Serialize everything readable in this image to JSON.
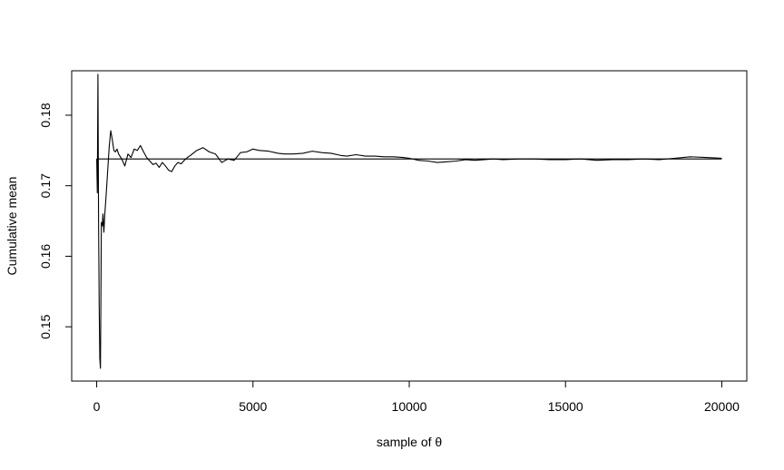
{
  "chart_data": {
    "type": "line",
    "title": "",
    "xlabel": "sample of θ",
    "ylabel": "Cumulative mean",
    "xlim": [
      -800,
      20800
    ],
    "ylim": [
      0.1423,
      0.1863
    ],
    "x_ticks": [
      0,
      5000,
      10000,
      15000,
      20000
    ],
    "x_tick_labels": [
      "0",
      "5000",
      "10000",
      "15000",
      "20000"
    ],
    "y_ticks": [
      0.15,
      0.16,
      0.17,
      0.18
    ],
    "y_tick_labels": [
      "0.15",
      "0.16",
      "0.17",
      "0.18"
    ],
    "grid": false,
    "legend": "none",
    "series": [
      {
        "style": "line",
        "x": [
          1,
          20,
          40,
          60,
          80,
          100,
          120,
          150,
          180,
          200,
          230,
          260,
          300,
          350,
          400,
          450,
          500,
          550,
          600,
          650,
          700,
          800,
          900,
          1000,
          1100,
          1200,
          1300,
          1400,
          1500,
          1600,
          1700,
          1800,
          1900,
          2000,
          2100,
          2200,
          2300,
          2400,
          2500,
          2600,
          2700,
          2800,
          2900,
          3000,
          3200,
          3400,
          3600,
          3800,
          4000,
          4200,
          4400,
          4600,
          4800,
          5000,
          5200,
          5500,
          5800,
          6000,
          6300,
          6600,
          6900,
          7200,
          7500,
          7800,
          8000,
          8300,
          8600,
          8900,
          9200,
          9500,
          9800,
          10000,
          10300,
          10600,
          10900,
          11200,
          11500,
          11800,
          12100,
          12400,
          12700,
          13000,
          13500,
          14000,
          14500,
          15000,
          15500,
          16000,
          16500,
          17000,
          17500,
          18000,
          18500,
          19000,
          19500,
          20000
        ],
        "y": [
          0.1738,
          0.169,
          0.1858,
          0.165,
          0.153,
          0.1455,
          0.1441,
          0.1648,
          0.1643,
          0.166,
          0.1634,
          0.166,
          0.1685,
          0.172,
          0.1755,
          0.1778,
          0.1765,
          0.175,
          0.1748,
          0.1752,
          0.1745,
          0.1738,
          0.1728,
          0.1745,
          0.174,
          0.1752,
          0.175,
          0.1757,
          0.1748,
          0.174,
          0.1735,
          0.173,
          0.1732,
          0.1726,
          0.1733,
          0.1728,
          0.1722,
          0.172,
          0.1728,
          0.1733,
          0.1731,
          0.1736,
          0.174,
          0.1743,
          0.175,
          0.1754,
          0.1748,
          0.1745,
          0.1733,
          0.1738,
          0.1736,
          0.1747,
          0.1748,
          0.1752,
          0.175,
          0.1749,
          0.1746,
          0.1745,
          0.1745,
          0.1746,
          0.1749,
          0.1747,
          0.1746,
          0.1743,
          0.1742,
          0.1744,
          0.1742,
          0.1742,
          0.1741,
          0.1741,
          0.174,
          0.1739,
          0.1736,
          0.1735,
          0.1733,
          0.1734,
          0.1735,
          0.1737,
          0.1736,
          0.1737,
          0.1738,
          0.1737,
          0.1738,
          0.1738,
          0.1737,
          0.1737,
          0.1738,
          0.1736,
          0.1737,
          0.1737,
          0.1738,
          0.1737,
          0.1739,
          0.1741,
          0.174,
          0.1739
        ]
      },
      {
        "style": "reference",
        "x": [
          0,
          20000
        ],
        "y": [
          0.1738,
          0.1738
        ]
      }
    ]
  }
}
